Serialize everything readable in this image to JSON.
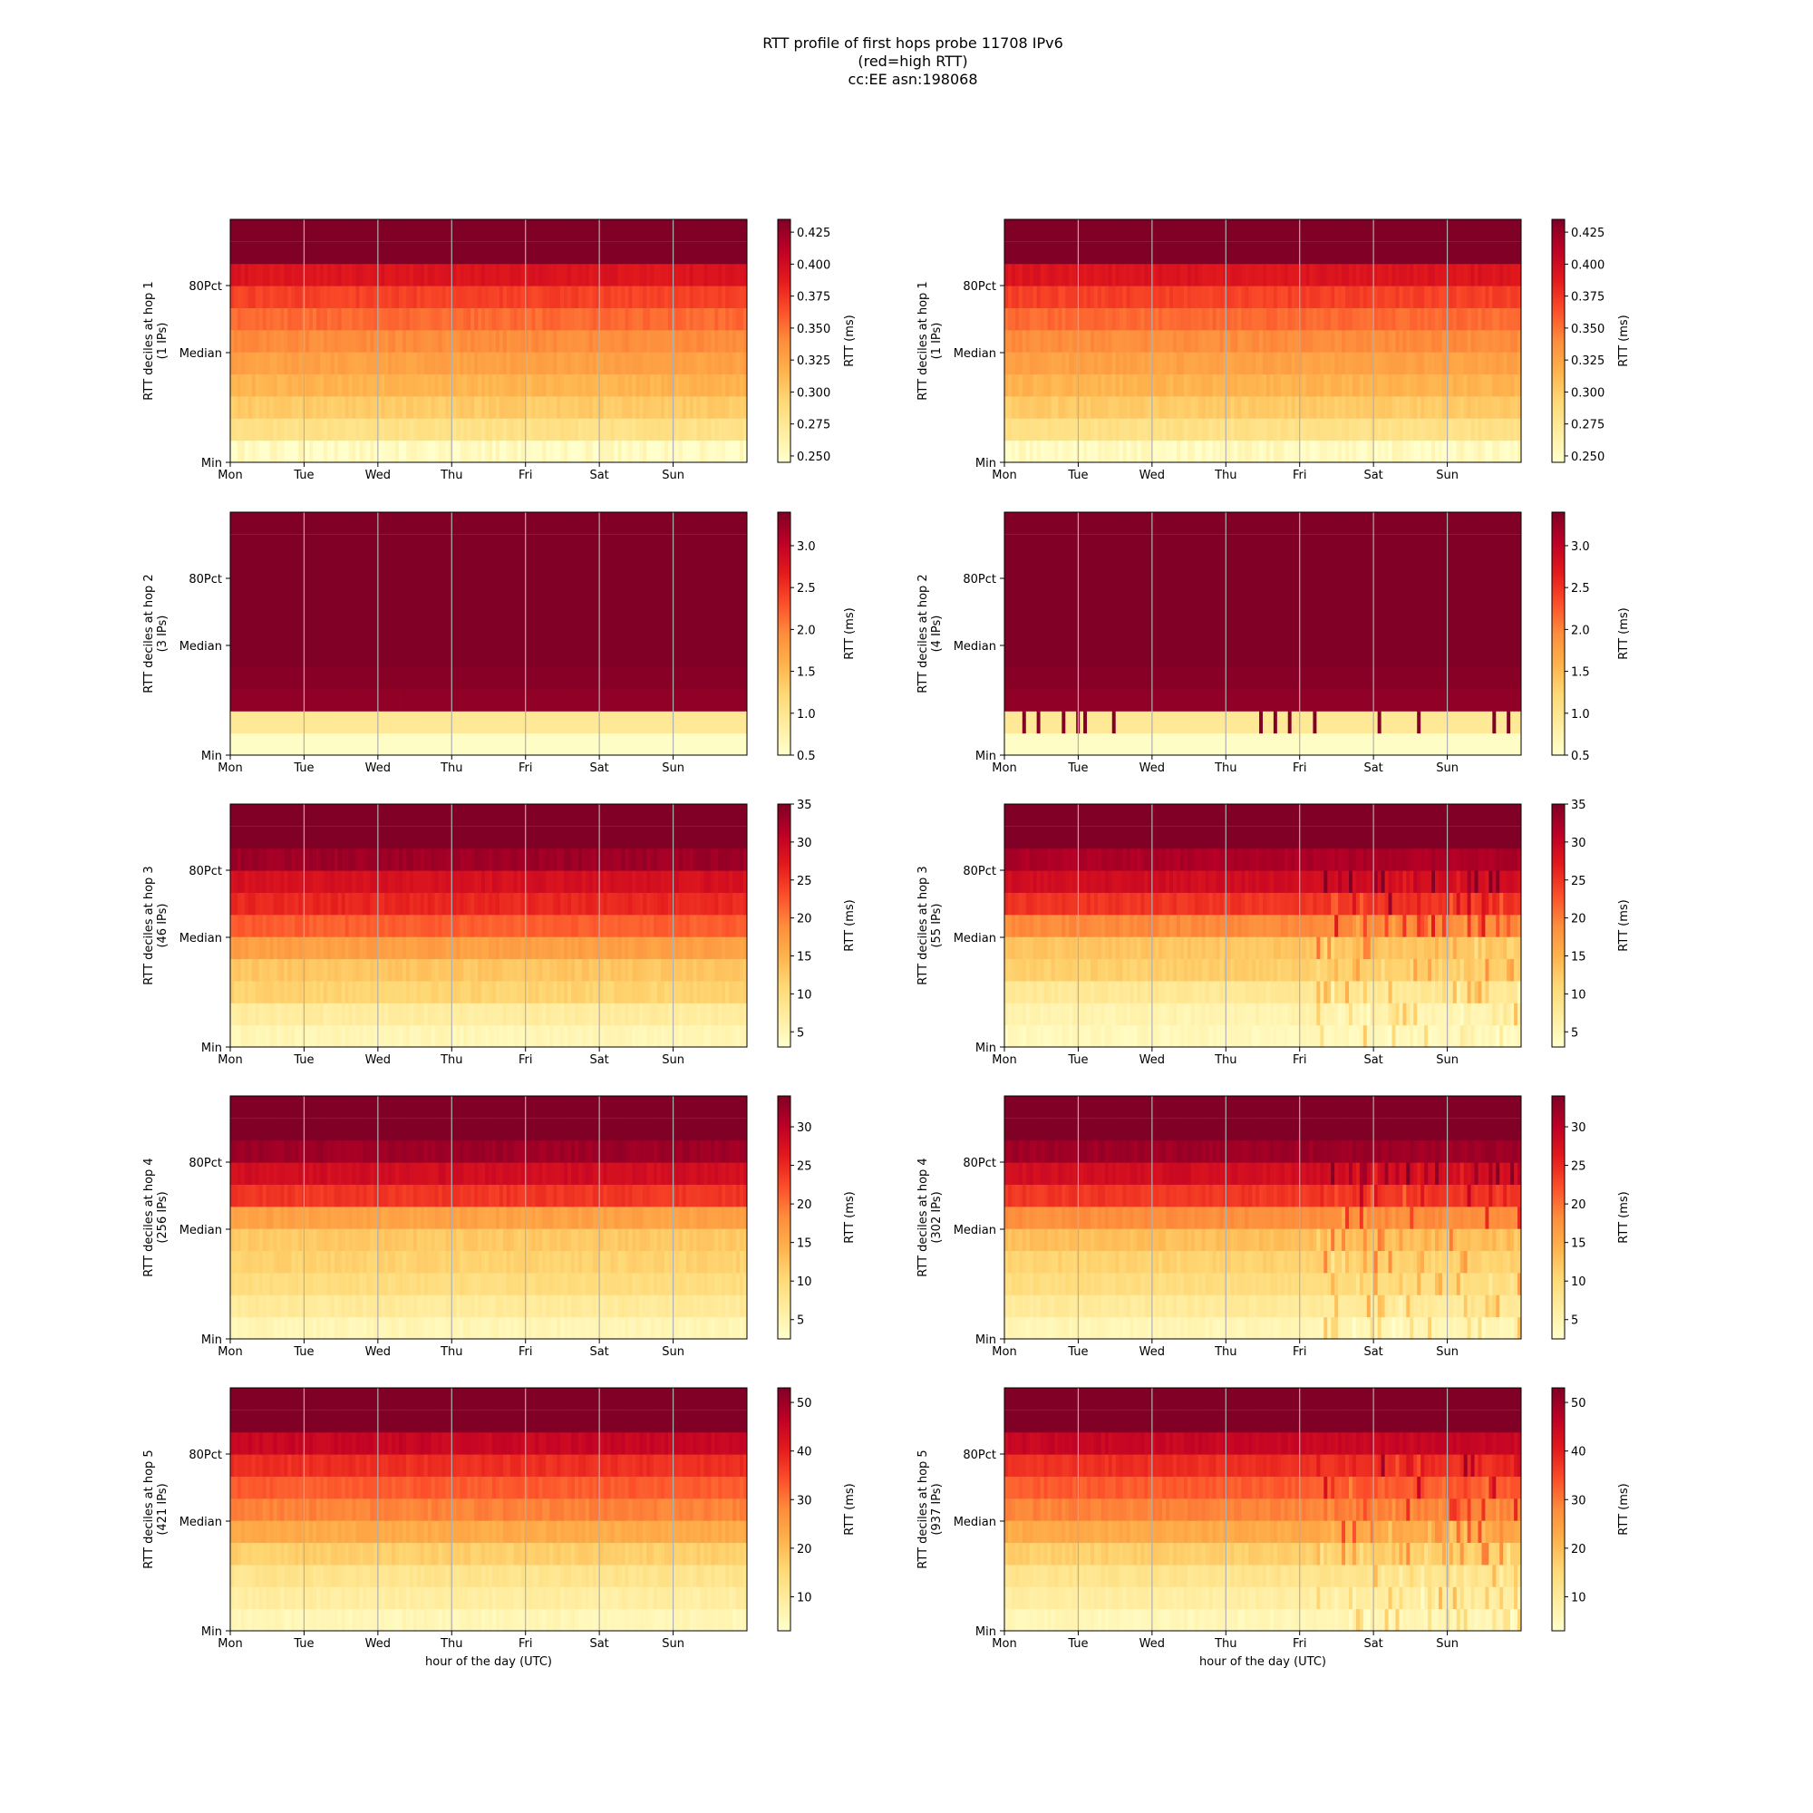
{
  "figure": {
    "title_lines": [
      "RTT profile of first hops probe 11708 IPv6",
      "(red=high RTT)",
      "cc:EE asn:198068"
    ]
  },
  "colors": {
    "scale": [
      "#ffffcc",
      "#ffeda0",
      "#fed976",
      "#feb24c",
      "#fd8d3c",
      "#fc4e2a",
      "#e31a1c",
      "#bd0026",
      "#800026"
    ],
    "gridline": "#b0b0b0"
  },
  "chart_data": [
    {
      "type": "heatmap",
      "column": "left",
      "row": 1,
      "ylabel": "RTT deciles at hop 1",
      "ylabel2": "(1 IPs)",
      "xticks": [
        "Mon",
        "Tue",
        "Wed",
        "Thu",
        "Fri",
        "Sat",
        "Sun"
      ],
      "yticks": [
        "80Pct",
        "Median",
        "Min"
      ],
      "colorbar_label": "RTT (ms)",
      "colorbar_ticks": [
        "0.425",
        "0.400",
        "0.375",
        "0.350",
        "0.325",
        "0.300",
        "0.275",
        "0.250"
      ],
      "clim": [
        0.245,
        0.435
      ],
      "band_values": [
        0.25,
        0.283,
        0.301,
        0.315,
        0.327,
        0.339,
        0.353,
        0.37,
        0.392,
        0.445
      ],
      "xlabel": ""
    },
    {
      "type": "heatmap",
      "column": "right",
      "row": 1,
      "ylabel": "RTT deciles at hop 1",
      "ylabel2": "(1 IPs)",
      "xticks": [
        "Mon",
        "Tue",
        "Wed",
        "Thu",
        "Fri",
        "Sat",
        "Sun"
      ],
      "yticks": [
        "80Pct",
        "Median",
        "Min"
      ],
      "colorbar_label": "RTT (ms)",
      "colorbar_ticks": [
        "0.425",
        "0.400",
        "0.375",
        "0.350",
        "0.325",
        "0.300",
        "0.275",
        "0.250"
      ],
      "clim": [
        0.245,
        0.435
      ],
      "band_values": [
        0.25,
        0.283,
        0.301,
        0.315,
        0.327,
        0.339,
        0.353,
        0.37,
        0.392,
        0.445
      ],
      "xlabel": ""
    },
    {
      "type": "heatmap",
      "column": "left",
      "row": 2,
      "ylabel": "RTT deciles at hop 2",
      "ylabel2": "(3 IPs)",
      "xticks": [
        "Mon",
        "Tue",
        "Wed",
        "Thu",
        "Fri",
        "Sat",
        "Sun"
      ],
      "yticks": [
        "80Pct",
        "Median",
        "Min"
      ],
      "colorbar_label": "RTT (ms)",
      "colorbar_ticks": [
        "3.0",
        "2.5",
        "2.0",
        "1.5",
        "1.0",
        "0.5"
      ],
      "clim": [
        0.5,
        3.4
      ],
      "band_values": [
        0.55,
        0.95,
        3.3,
        3.35,
        3.4,
        3.45,
        3.5,
        3.55,
        3.6,
        3.7
      ],
      "xlabel": ""
    },
    {
      "type": "heatmap",
      "column": "right",
      "row": 2,
      "ylabel": "RTT deciles at hop 2",
      "ylabel2": "(4 IPs)",
      "xticks": [
        "Mon",
        "Tue",
        "Wed",
        "Thu",
        "Fri",
        "Sat",
        "Sun"
      ],
      "yticks": [
        "80Pct",
        "Median",
        "Min"
      ],
      "colorbar_label": "RTT (ms)",
      "colorbar_ticks": [
        "3.0",
        "2.5",
        "2.0",
        "1.5",
        "1.0",
        "0.5"
      ],
      "clim": [
        0.5,
        3.4
      ],
      "band_values": [
        0.55,
        0.95,
        3.3,
        3.35,
        3.4,
        3.45,
        3.5,
        3.55,
        3.6,
        3.7
      ],
      "xlabel": ""
    },
    {
      "type": "heatmap",
      "column": "left",
      "row": 3,
      "ylabel": "RTT deciles at hop 3",
      "ylabel2": "(46 IPs)",
      "xticks": [
        "Mon",
        "Tue",
        "Wed",
        "Thu",
        "Fri",
        "Sat",
        "Sun"
      ],
      "yticks": [
        "80Pct",
        "Median",
        "Min"
      ],
      "colorbar_label": "RTT (ms)",
      "colorbar_ticks": [
        "35",
        "30",
        "25",
        "20",
        "15",
        "10",
        "5"
      ],
      "clim": [
        3,
        35
      ],
      "band_values": [
        5,
        7,
        11.5,
        13,
        17,
        22,
        26,
        28.5,
        33,
        37
      ],
      "xlabel": ""
    },
    {
      "type": "heatmap",
      "column": "right",
      "row": 3,
      "ylabel": "RTT deciles at hop 3",
      "ylabel2": "(55 IPs)",
      "xticks": [
        "Mon",
        "Tue",
        "Wed",
        "Thu",
        "Fri",
        "Sat",
        "Sun"
      ],
      "yticks": [
        "80Pct",
        "Median",
        "Min"
      ],
      "colorbar_label": "RTT (ms)",
      "colorbar_ticks": [
        "35",
        "30",
        "25",
        "20",
        "15",
        "10",
        "5"
      ],
      "clim": [
        3,
        35
      ],
      "band_values": [
        4.5,
        5.5,
        8,
        12,
        13,
        19,
        25,
        29,
        32,
        37
      ],
      "xlabel": ""
    },
    {
      "type": "heatmap",
      "column": "left",
      "row": 4,
      "ylabel": "RTT deciles at hop 4",
      "ylabel2": "(256 IPs)",
      "xticks": [
        "Mon",
        "Tue",
        "Wed",
        "Thu",
        "Fri",
        "Sat",
        "Sun"
      ],
      "yticks": [
        "80Pct",
        "Median",
        "Min"
      ],
      "colorbar_label": "RTT (ms)",
      "colorbar_ticks": [
        "30",
        "25",
        "20",
        "15",
        "10",
        "5"
      ],
      "clim": [
        2.5,
        34
      ],
      "band_values": [
        4.5,
        7,
        9.5,
        11,
        12,
        16,
        24,
        28,
        32,
        36
      ],
      "xlabel": ""
    },
    {
      "type": "heatmap",
      "column": "right",
      "row": 4,
      "ylabel": "RTT deciles at hop 4",
      "ylabel2": "(302 IPs)",
      "xticks": [
        "Mon",
        "Tue",
        "Wed",
        "Thu",
        "Fri",
        "Sat",
        "Sun"
      ],
      "yticks": [
        "80Pct",
        "Median",
        "Min"
      ],
      "colorbar_label": "RTT (ms)",
      "colorbar_ticks": [
        "30",
        "25",
        "20",
        "15",
        "10",
        "5"
      ],
      "clim": [
        2.5,
        34
      ],
      "band_values": [
        4.5,
        7,
        9.5,
        11,
        13,
        18,
        24,
        28,
        32,
        36
      ],
      "xlabel": ""
    },
    {
      "type": "heatmap",
      "column": "left",
      "row": 5,
      "ylabel": "RTT deciles at hop 5",
      "ylabel2": "(421 IPs)",
      "xticks": [
        "Mon",
        "Tue",
        "Wed",
        "Thu",
        "Fri",
        "Sat",
        "Sun"
      ],
      "yticks": [
        "80Pct",
        "Median",
        "Min"
      ],
      "colorbar_label": "RTT (ms)",
      "colorbar_ticks": [
        "50",
        "40",
        "30",
        "20",
        "10"
      ],
      "clim": [
        3,
        53
      ],
      "band_values": [
        6,
        9,
        12,
        17,
        23,
        29,
        33,
        38,
        45,
        55
      ],
      "xlabel": "hour of the day (UTC)"
    },
    {
      "type": "heatmap",
      "column": "right",
      "row": 5,
      "ylabel": "RTT deciles at hop 5",
      "ylabel2": "(937 IPs)",
      "xticks": [
        "Mon",
        "Tue",
        "Wed",
        "Thu",
        "Fri",
        "Sat",
        "Sun"
      ],
      "yticks": [
        "80Pct",
        "Median",
        "Min"
      ],
      "colorbar_label": "RTT (ms)",
      "colorbar_ticks": [
        "50",
        "40",
        "30",
        "20",
        "10"
      ],
      "clim": [
        3,
        53
      ],
      "band_values": [
        6,
        9,
        12,
        17,
        23,
        29,
        33,
        38,
        45,
        55
      ],
      "xlabel": "hour of the day (UTC)"
    }
  ]
}
